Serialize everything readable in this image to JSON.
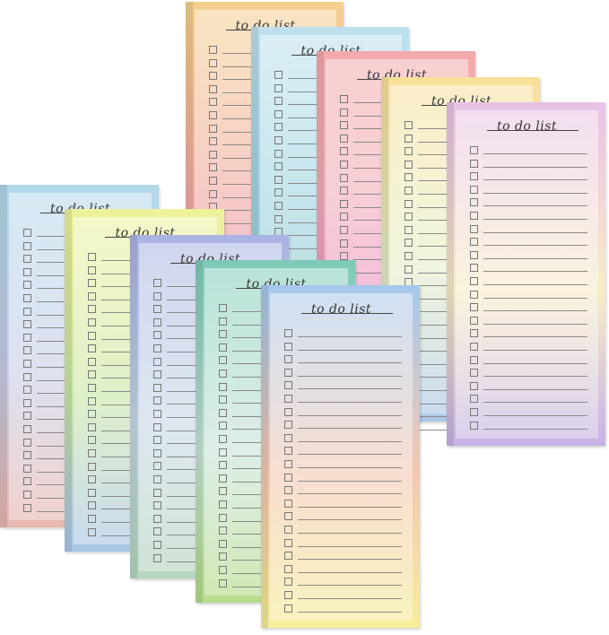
{
  "pad_title": "to do list",
  "pads": [
    {
      "name": "orange-pink-pad",
      "colors": [
        "#f4d08e",
        "#f2b79c",
        "#eea3ac"
      ]
    },
    {
      "name": "blue-teal-pad",
      "colors": [
        "#bfe0ee",
        "#a8d8e6",
        "#9ccfd8"
      ]
    },
    {
      "name": "pink-pad",
      "colors": [
        "#f3a9ad",
        "#f1b0b8",
        "#ee9fc8"
      ]
    },
    {
      "name": "yellow-blue-pad",
      "colors": [
        "#f9e09a",
        "#e6efc8",
        "#a9c6e8"
      ]
    },
    {
      "name": "pink-yellow-purple-pad",
      "colors": [
        "#e8c2e6",
        "#f8ecc8",
        "#c6b2e6"
      ]
    },
    {
      "name": "blue-pink-pad",
      "colors": [
        "#b2d8ea",
        "#c8cde6",
        "#e9b8b0"
      ]
    },
    {
      "name": "yellow-green-blue-pad",
      "colors": [
        "#eef29a",
        "#c9e6a6",
        "#aac6ea"
      ]
    },
    {
      "name": "purple-green-pad",
      "colors": [
        "#aab3e2",
        "#c8d8e6",
        "#b6d6be"
      ]
    },
    {
      "name": "teal-green-pad",
      "colors": [
        "#7ccab8",
        "#c8e4d8",
        "#b6dc8a"
      ]
    },
    {
      "name": "blue-orange-yellow-pad",
      "colors": [
        "#a6c8ec",
        "#f3c8b2",
        "#f6ee9a"
      ]
    }
  ]
}
